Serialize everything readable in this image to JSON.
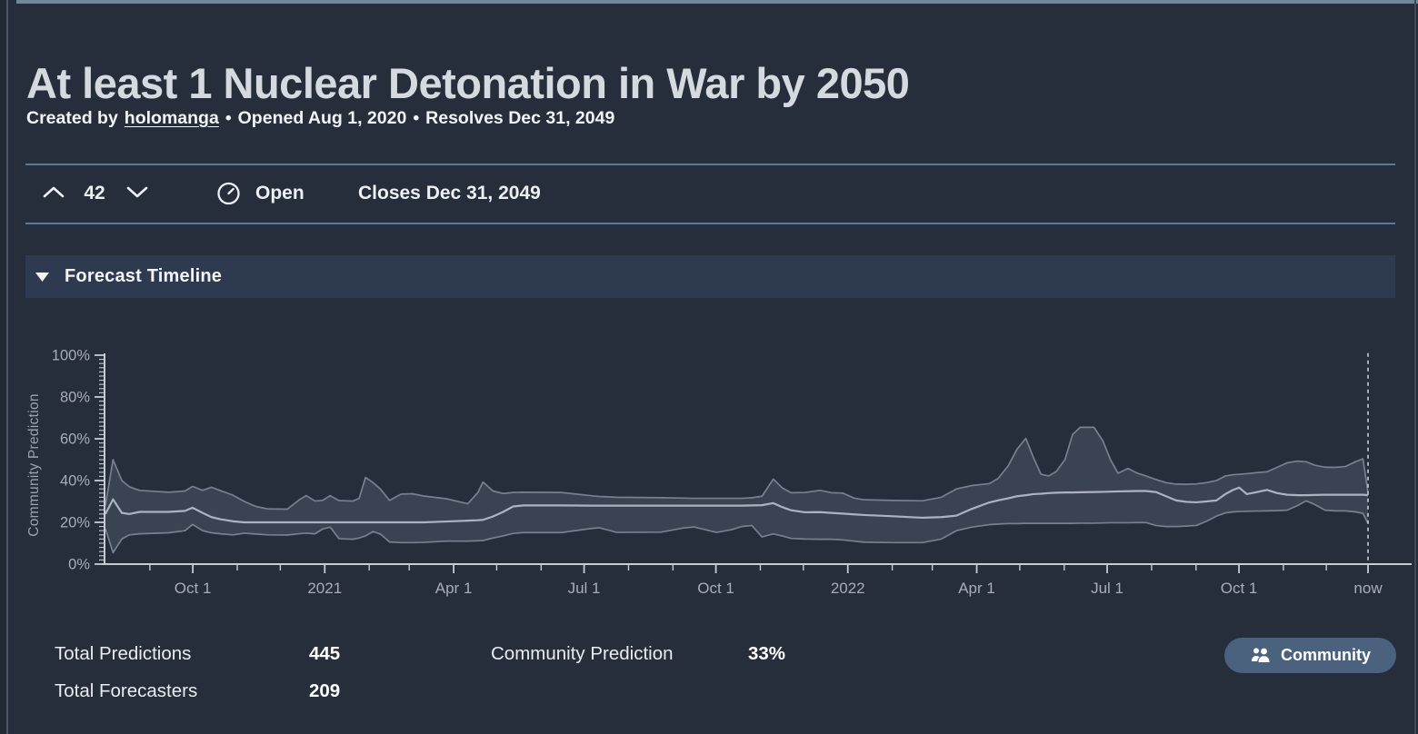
{
  "page": {
    "title": "At least 1 Nuclear Detonation in War by 2050"
  },
  "byline": {
    "prefix": "Created by",
    "author": "holomanga",
    "sep1": "•",
    "opened": "Opened Aug 1, 2020",
    "sep2": "•",
    "resolves": "Resolves Dec 31, 2049"
  },
  "vote_row": {
    "votes": "42",
    "status": "Open",
    "closes": "Closes Dec 31, 2049"
  },
  "timeline_section": {
    "header": "Forecast Timeline"
  },
  "stats": {
    "total_predictions_label": "Total Predictions",
    "total_predictions_value": "445",
    "total_forecasters_label": "Total Forecasters",
    "total_forecasters_value": "209",
    "community_prediction_label": "Community Prediction",
    "community_prediction_value": "33%",
    "community_button_label": "Community"
  },
  "colors": {
    "page_background": "#262E3B",
    "top_bar": "#71889F",
    "divider": "#5E7995",
    "section_header_background": "#2E3A4F",
    "band_fill": "#3A4352",
    "band_edge_line": "#76808F",
    "community_line": "#ACB3BF",
    "axis": "#C7CCD3",
    "axis_label_text": "#A7AEB9",
    "button_background": "#4A627E",
    "title_text": "#D5DAE0"
  },
  "chart_data": {
    "type": "area",
    "title": "Forecast Timeline",
    "ylabel": "Community Prediction",
    "xlabel": "",
    "ylim": [
      0,
      100
    ],
    "grid": false,
    "legend": "none",
    "final_community_prediction_pct": 33,
    "y_ticks": [
      {
        "pct": 0,
        "label": "0%"
      },
      {
        "pct": 20,
        "label": "20%"
      },
      {
        "pct": 40,
        "label": "40%"
      },
      {
        "pct": 60,
        "label": "60%"
      },
      {
        "pct": 80,
        "label": "80%"
      },
      {
        "pct": 100,
        "label": "100%"
      }
    ],
    "y_minor_step_pct": 2,
    "x_axis": {
      "range_note": "t is percent of timeline from Aug 1 2020 (0) to now (100)",
      "major_ticks": [
        {
          "t": 6.92,
          "label": "Oct 1"
        },
        {
          "t": 17.37,
          "label": "2021"
        },
        {
          "t": 27.58,
          "label": "Apr 1"
        },
        {
          "t": 37.91,
          "label": "Jul 1"
        },
        {
          "t": 48.35,
          "label": "Oct 1"
        },
        {
          "t": 58.8,
          "label": "2022"
        },
        {
          "t": 69.01,
          "label": "Apr 1"
        },
        {
          "t": 79.34,
          "label": "Jul 1"
        },
        {
          "t": 89.78,
          "label": "Oct 1"
        },
        {
          "t": 100,
          "label": "now"
        }
      ],
      "minor_ticks_t": [
        3.52,
        10.44,
        13.85,
        20.89,
        24.06,
        30.99,
        34.51,
        41.43,
        44.95,
        51.87,
        55.28,
        62.32,
        65.49,
        72.42,
        75.94,
        82.86,
        86.38,
        93.3,
        96.7
      ],
      "now_line_t": 100
    },
    "series": [
      {
        "name": "lower_quartile",
        "tuple_index": 1
      },
      {
        "name": "community_median",
        "tuple_index": 2
      },
      {
        "name": "upper_quartile",
        "tuple_index": 3
      }
    ],
    "points": [
      [
        0,
        17,
        24,
        28
      ],
      [
        0.6,
        5.5,
        31,
        50
      ],
      [
        1.3,
        12,
        24.5,
        40
      ],
      [
        1.9,
        14,
        24,
        37
      ],
      [
        2.7,
        14.5,
        25,
        35.3
      ],
      [
        5,
        15,
        25,
        34.4
      ],
      [
        6.3,
        16,
        25.5,
        35
      ],
      [
        6.9,
        19,
        27,
        37.2
      ],
      [
        7.7,
        16,
        24.5,
        35.3
      ],
      [
        8.4,
        15,
        22.5,
        36.8
      ],
      [
        9.1,
        14.5,
        21.5,
        35.2
      ],
      [
        10.1,
        14,
        20.5,
        33
      ],
      [
        11,
        14.8,
        20,
        30
      ],
      [
        11.9,
        14.4,
        20,
        27.6
      ],
      [
        12.9,
        14,
        20,
        26.4
      ],
      [
        14.4,
        13.9,
        20,
        26.3
      ],
      [
        15.4,
        14.6,
        20,
        31
      ],
      [
        15.9,
        14.8,
        20,
        32.8
      ],
      [
        16.6,
        14.5,
        20,
        30.2
      ],
      [
        17.2,
        16.8,
        20,
        30.5
      ],
      [
        17.8,
        17.7,
        20,
        32.8
      ],
      [
        18.5,
        12.2,
        20,
        30.4
      ],
      [
        19.6,
        11.9,
        20,
        30.2
      ],
      [
        20.1,
        12.5,
        20,
        31.5
      ],
      [
        20.6,
        13.5,
        20,
        41.5
      ],
      [
        21.2,
        15.6,
        20,
        39
      ],
      [
        21.8,
        14.3,
        20,
        35.8
      ],
      [
        22.5,
        10.6,
        20,
        30.5
      ],
      [
        23.4,
        10.3,
        20,
        33.5
      ],
      [
        24.3,
        10.3,
        20,
        33.7
      ],
      [
        25.2,
        10.4,
        20,
        32.6
      ],
      [
        27,
        11,
        20.4,
        31.3
      ],
      [
        28.7,
        11,
        20.8,
        28.9
      ],
      [
        29.5,
        11.2,
        21,
        34.3
      ],
      [
        29.9,
        11.3,
        21.2,
        39.3
      ],
      [
        30.7,
        12.5,
        22.8,
        35
      ],
      [
        31.5,
        13.5,
        25,
        33.8
      ],
      [
        32.3,
        14.7,
        27.6,
        34.3
      ],
      [
        33.1,
        15.1,
        28.1,
        34.4
      ],
      [
        36.1,
        15.1,
        28.1,
        34.3
      ],
      [
        38.4,
        17,
        28,
        32.8
      ],
      [
        39.1,
        17.4,
        28,
        32.4
      ],
      [
        40.5,
        15.2,
        28,
        32
      ],
      [
        44,
        15.3,
        28,
        31.8
      ],
      [
        45.8,
        17.3,
        28,
        31.6
      ],
      [
        46.6,
        17.8,
        28,
        31.5
      ],
      [
        48.4,
        15.2,
        28,
        31.5
      ],
      [
        49.6,
        16.5,
        28,
        31.5
      ],
      [
        50.4,
        18,
        28,
        31.5
      ],
      [
        51.2,
        18.5,
        28.1,
        31.8
      ],
      [
        52,
        13,
        28.2,
        32.5
      ],
      [
        52.9,
        14.5,
        29.2,
        40.7
      ],
      [
        53.6,
        13.5,
        27.3,
        36.5
      ],
      [
        54.3,
        12.3,
        25.8,
        34.2
      ],
      [
        55.4,
        12,
        24.8,
        34.3
      ],
      [
        56.6,
        11.9,
        24.9,
        35.3
      ],
      [
        57.5,
        11.9,
        24.5,
        34.2
      ],
      [
        58.4,
        11.6,
        24.2,
        34
      ],
      [
        59.3,
        11,
        23.8,
        31.6
      ],
      [
        60.1,
        10.5,
        23.5,
        30.8
      ],
      [
        62.4,
        10.3,
        22.9,
        30.5
      ],
      [
        64.7,
        10.3,
        22.2,
        30.3
      ],
      [
        66.2,
        12,
        22.5,
        32
      ],
      [
        67.4,
        16,
        23.2,
        36
      ],
      [
        68.6,
        17.7,
        26.4,
        37.6
      ],
      [
        70,
        18.9,
        29.5,
        38.5
      ],
      [
        70.7,
        19.2,
        30.5,
        41
      ],
      [
        71.5,
        19.4,
        31.5,
        47
      ],
      [
        72.2,
        19.4,
        32.5,
        55
      ],
      [
        72.9,
        19.5,
        33,
        60.2
      ],
      [
        73.5,
        19.5,
        33.5,
        51
      ],
      [
        74.1,
        19.5,
        33.7,
        43
      ],
      [
        74.7,
        19.5,
        34,
        42.2
      ],
      [
        75.3,
        19.5,
        34.2,
        44.3
      ],
      [
        76,
        19.5,
        34.3,
        50
      ],
      [
        76.6,
        19.5,
        34.3,
        62
      ],
      [
        77.2,
        19.6,
        34.4,
        65.5
      ],
      [
        78.3,
        19.6,
        34.5,
        65.5
      ],
      [
        79,
        19.7,
        34.6,
        59
      ],
      [
        79.6,
        19.8,
        34.7,
        50
      ],
      [
        80.2,
        19.8,
        34.8,
        43.5
      ],
      [
        81,
        19.8,
        34.9,
        45.8
      ],
      [
        81.7,
        19.9,
        35,
        43.6
      ],
      [
        82.4,
        19.9,
        35,
        42.2
      ],
      [
        83.2,
        18.5,
        34.5,
        40.5
      ],
      [
        84,
        18,
        32.5,
        39
      ],
      [
        84.8,
        18,
        30.5,
        38.3
      ],
      [
        85.6,
        18.2,
        29.8,
        38.2
      ],
      [
        86.4,
        18.5,
        29.6,
        38.4
      ],
      [
        87.2,
        20.5,
        30,
        39
      ],
      [
        88,
        23,
        30.5,
        40
      ],
      [
        88.7,
        24.5,
        33.5,
        42.2
      ],
      [
        89.3,
        25,
        35.5,
        42.8
      ],
      [
        89.8,
        25.2,
        36.6,
        43
      ],
      [
        90.4,
        25.3,
        33.5,
        43.3
      ],
      [
        91.2,
        25.4,
        34.5,
        43.8
      ],
      [
        92,
        25.5,
        35.5,
        44.2
      ],
      [
        92.8,
        25.6,
        34,
        46.3
      ],
      [
        93.6,
        25.8,
        33.2,
        48.5
      ],
      [
        94.4,
        28,
        33,
        49.3
      ],
      [
        95.1,
        30.3,
        33,
        49
      ],
      [
        95.8,
        28.5,
        33.1,
        47.3
      ],
      [
        96.6,
        25.8,
        33.2,
        46.4
      ],
      [
        97.4,
        25.5,
        33.2,
        46.3
      ],
      [
        98.2,
        25.5,
        33.2,
        46.7
      ],
      [
        99,
        25,
        33.2,
        49
      ],
      [
        99.6,
        24.3,
        33.2,
        50.4
      ],
      [
        100,
        19.5,
        33,
        34.3
      ]
    ]
  }
}
